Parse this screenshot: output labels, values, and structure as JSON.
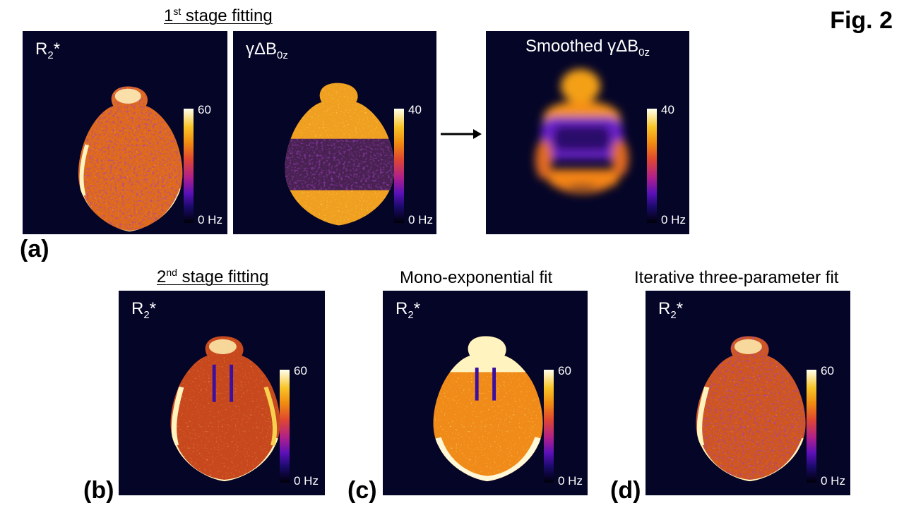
{
  "figure": {
    "label": "Fig. 2",
    "units": "Hz",
    "stage1_title": "stage fitting",
    "stage1_prefix": "1",
    "stage1_sup": "st",
    "stage2_title": "stage fitting",
    "stage2_prefix": "2",
    "stage2_sup": "nd",
    "mono_title": "Mono-exponential fit",
    "iterative_title": "Iterative three-parameter fit"
  },
  "panel_labels": {
    "a": "(a)",
    "b": "(b)",
    "c": "(c)",
    "d": "(d)"
  },
  "maps": {
    "a1": {
      "symbol": "R",
      "sub": "2",
      "suffix": "*",
      "cb_max": "60",
      "cb_min": "0 Hz"
    },
    "a2": {
      "symbol": "γΔB",
      "sub": "0z",
      "cb_max": "40",
      "cb_min": "0 Hz"
    },
    "a3": {
      "prefix": "Smoothed ",
      "symbol": "γΔB",
      "sub": "0z",
      "cb_max": "40",
      "cb_min": "0 Hz"
    },
    "b": {
      "symbol": "R",
      "sub": "2",
      "suffix": "*",
      "cb_max": "60",
      "cb_min": "0 Hz"
    },
    "c": {
      "symbol": "R",
      "sub": "2",
      "suffix": "*",
      "cb_max": "60",
      "cb_min": "0 Hz"
    },
    "d": {
      "symbol": "R",
      "sub": "2",
      "suffix": "*",
      "cb_max": "60",
      "cb_min": "0 Hz"
    }
  },
  "colors": {
    "background": "#050528",
    "bright": "#fff4c0",
    "yellow": "#f8c428",
    "orange": "#e87a18",
    "magenta": "#b02088",
    "purple": "#6a18c0"
  }
}
